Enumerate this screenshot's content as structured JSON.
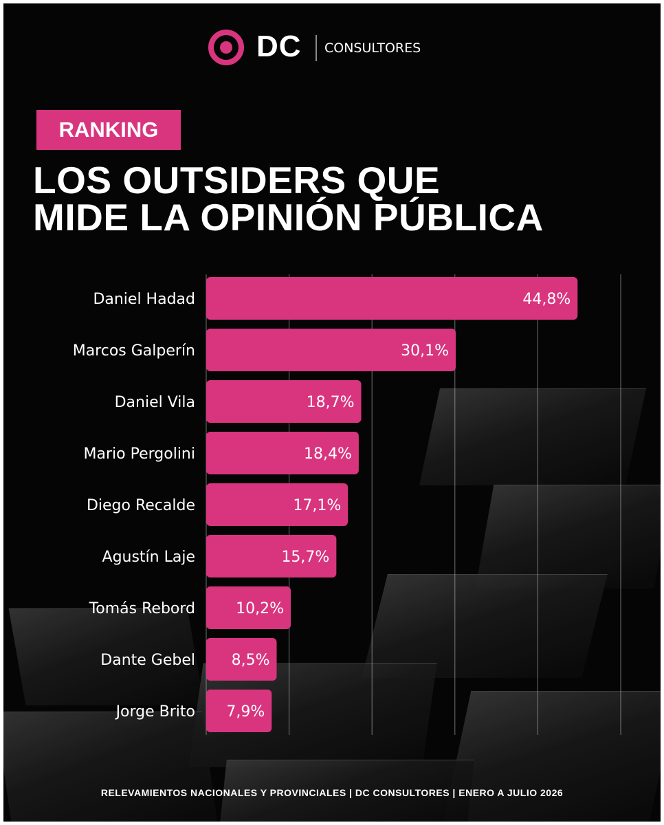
{
  "brand": {
    "logo_text": "DC",
    "logo_subtitle": "CONSULTORES",
    "accent_color": "#d9357f",
    "background_color": "#050505"
  },
  "badge": "RANKING",
  "title": {
    "line1": "LOS OUTSIDERS QUE",
    "line2": "MIDE LA OPINIÓN PÚBLICA"
  },
  "chart_data": {
    "type": "bar",
    "orientation": "horizontal",
    "categories": [
      "Daniel Hadad",
      "Marcos Galperín",
      "Daniel Vila",
      "Mario Pergolini",
      "Diego Recalde",
      "Agustín Laje",
      "Tomás Rebord",
      "Dante Gebel",
      "Jorge Brito"
    ],
    "values": [
      44.8,
      30.1,
      18.7,
      18.4,
      17.1,
      15.7,
      10.2,
      8.5,
      7.9
    ],
    "labels": [
      "44,8%",
      "30,1%",
      "18,7%",
      "18,4%",
      "17,1%",
      "15,7%",
      "10,2%",
      "8,5%",
      "7,9%"
    ],
    "xlim": [
      0,
      50
    ],
    "grid": true,
    "bar_color": "#d9357f"
  },
  "footer": "RELEVAMIENTOS NACIONALES Y PROVINCIALES | DC CONSULTORES | ENERO A JULIO 2026"
}
